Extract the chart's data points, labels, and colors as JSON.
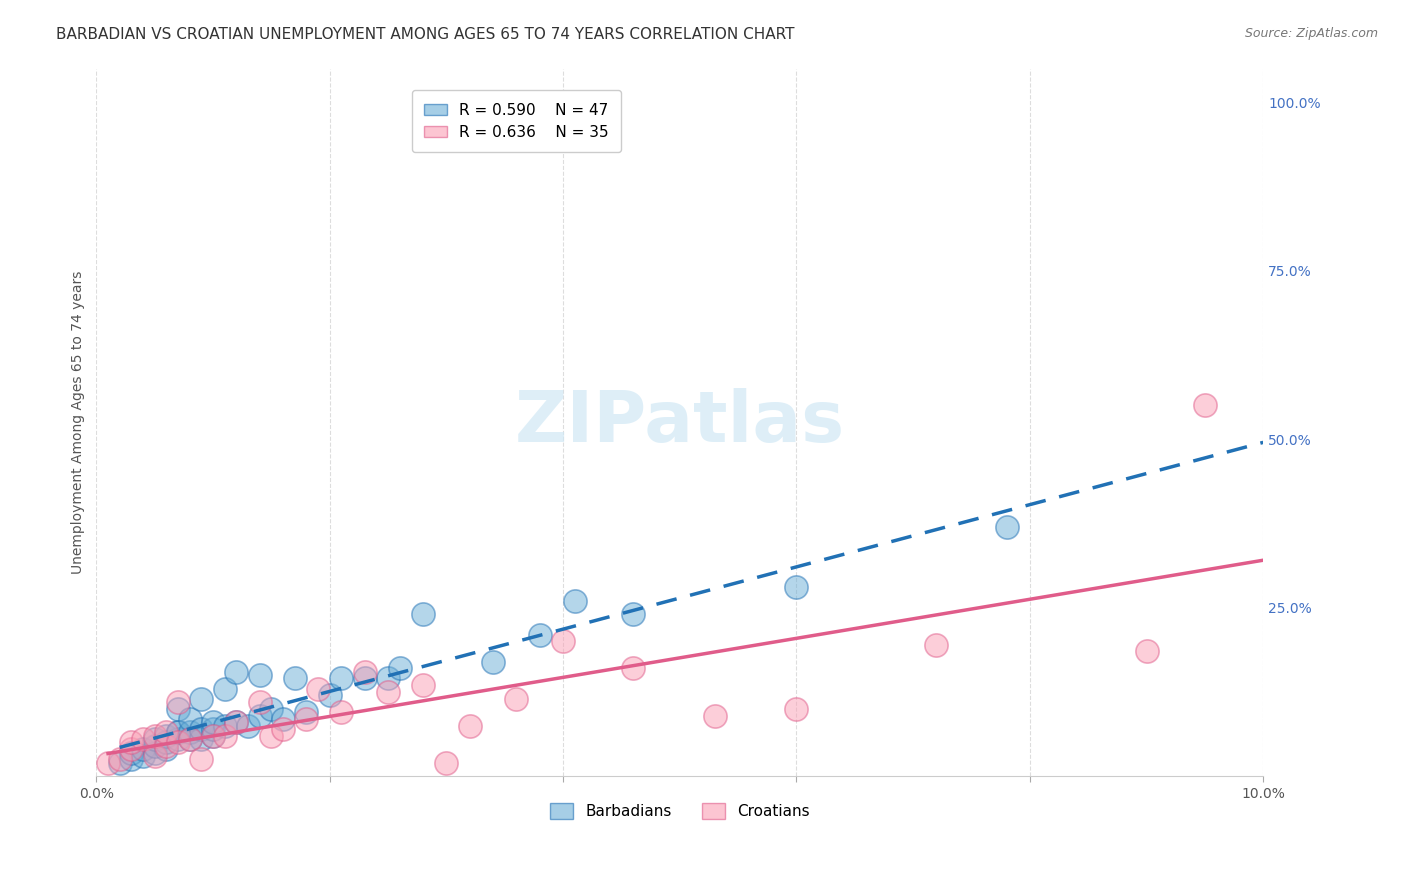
{
  "title": "BARBADIAN VS CROATIAN UNEMPLOYMENT AMONG AGES 65 TO 74 YEARS CORRELATION CHART",
  "source": "Source: ZipAtlas.com",
  "xlabel": "",
  "ylabel": "Unemployment Among Ages 65 to 74 years",
  "xlim": [
    0.0,
    0.1
  ],
  "ylim": [
    0.0,
    1.05
  ],
  "xticks": [
    0.0,
    0.02,
    0.04,
    0.06,
    0.08,
    0.1
  ],
  "xticklabels": [
    "0.0%",
    "",
    "",
    "",
    "",
    "10.0%"
  ],
  "yticks_right": [
    0.0,
    0.25,
    0.5,
    0.75,
    1.0
  ],
  "yticklabels_right": [
    "",
    "25.0%",
    "50.0%",
    "75.0%",
    "100.0%"
  ],
  "legend_blue_r": "R = 0.590",
  "legend_blue_n": "N = 47",
  "legend_pink_r": "R = 0.636",
  "legend_pink_n": "N = 35",
  "blue_color": "#6baed6",
  "pink_color": "#fa9fb5",
  "blue_line_color": "#2171b5",
  "pink_line_color": "#e05c8a",
  "blue_dashed_color": "#6baed6",
  "watermark": "ZIPatlas",
  "background_color": "#ffffff",
  "grid_color": "#dddddd",
  "barbadians_x": [
    0.002,
    0.003,
    0.003,
    0.004,
    0.004,
    0.005,
    0.005,
    0.005,
    0.006,
    0.006,
    0.006,
    0.007,
    0.007,
    0.007,
    0.007,
    0.008,
    0.008,
    0.008,
    0.009,
    0.009,
    0.009,
    0.01,
    0.01,
    0.01,
    0.011,
    0.011,
    0.012,
    0.012,
    0.013,
    0.014,
    0.014,
    0.015,
    0.016,
    0.017,
    0.018,
    0.02,
    0.021,
    0.023,
    0.025,
    0.026,
    0.028,
    0.034,
    0.038,
    0.041,
    0.046,
    0.06,
    0.078
  ],
  "barbadians_y": [
    0.02,
    0.025,
    0.035,
    0.03,
    0.04,
    0.035,
    0.045,
    0.055,
    0.04,
    0.05,
    0.06,
    0.055,
    0.065,
    0.065,
    0.1,
    0.055,
    0.065,
    0.085,
    0.055,
    0.07,
    0.115,
    0.06,
    0.07,
    0.08,
    0.075,
    0.13,
    0.08,
    0.155,
    0.075,
    0.09,
    0.15,
    0.1,
    0.085,
    0.145,
    0.095,
    0.12,
    0.145,
    0.145,
    0.145,
    0.16,
    0.24,
    0.17,
    0.21,
    0.26,
    0.24,
    0.28,
    0.37
  ],
  "croatians_x": [
    0.001,
    0.002,
    0.003,
    0.003,
    0.004,
    0.005,
    0.005,
    0.006,
    0.006,
    0.007,
    0.007,
    0.008,
    0.009,
    0.01,
    0.011,
    0.012,
    0.014,
    0.015,
    0.016,
    0.018,
    0.019,
    0.021,
    0.023,
    0.025,
    0.028,
    0.03,
    0.032,
    0.036,
    0.04,
    0.046,
    0.053,
    0.06,
    0.072,
    0.09,
    0.095
  ],
  "croatians_y": [
    0.02,
    0.025,
    0.04,
    0.05,
    0.055,
    0.03,
    0.06,
    0.045,
    0.065,
    0.05,
    0.11,
    0.055,
    0.025,
    0.06,
    0.06,
    0.08,
    0.11,
    0.06,
    0.07,
    0.085,
    0.13,
    0.095,
    0.155,
    0.125,
    0.135,
    0.02,
    0.075,
    0.115,
    0.2,
    0.16,
    0.09,
    0.1,
    0.195,
    0.185,
    0.55
  ],
  "title_fontsize": 11,
  "axis_label_fontsize": 10,
  "tick_fontsize": 10,
  "legend_fontsize": 11,
  "right_tick_color": "#4472c4",
  "bottom_tick_color": "#555555"
}
